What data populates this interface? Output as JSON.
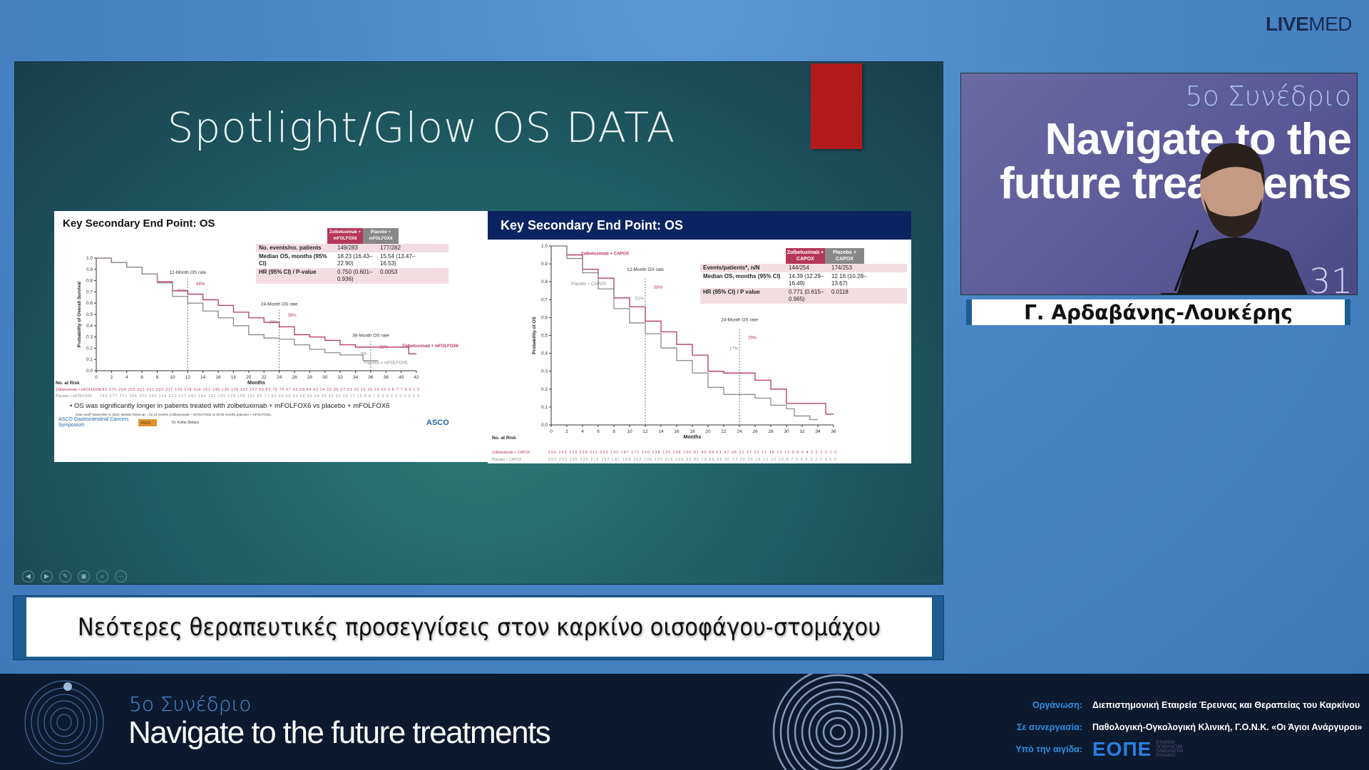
{
  "brand": {
    "live": "LIVE",
    "med": "MED"
  },
  "slide": {
    "title": "Spotlight/Glow OS DATA",
    "controls": [
      "previous",
      "next",
      "pen",
      "slides",
      "zoom",
      "more"
    ]
  },
  "subtitle": "Νεότερες θεραπευτικές προσεγγίσεις στον καρκίνο οισοφάγου-στομάχου",
  "video": {
    "line1": "5ο Συνέδριο",
    "line2": "Navigate to the",
    "line3": "future treatments",
    "corner": "31"
  },
  "speaker_name": "Γ. Αρδαβάνης-Λουκέρης",
  "footer": {
    "congress": "5ο Συνέδριο",
    "tagline": "Navigate to the future treatments",
    "rows": [
      {
        "key": "Οργάνωση:",
        "value": "Διεπιστημονική Εταιρεία Έρευνας και Θεραπείας του Καρκίνου"
      },
      {
        "key": "Σε συνεργασία:",
        "value": "Παθολογική-Ογκολογική Κλινική, Γ.Ο.Ν.Κ. «Οι Άγιοι Ανάργυροι»"
      },
      {
        "key": "Υπό την αιγίδα:",
        "value": "ΕΟΠΕ",
        "sub": "ΕΤΑΙΡΕΙΑ ΟΓΚΟΛΟΓΩΝ ΠΑΘΟΛΟΓΩΝ ΕΛΛΑΔΑΣ"
      }
    ]
  },
  "colors": {
    "zolbe": "#b5375a",
    "placebo": "#8a8a8a",
    "navy": "#0b2461"
  },
  "chart_data": [
    {
      "type": "line",
      "title": "Key Secondary End Point: OS",
      "xlabel": "Months",
      "ylabel": "Probability of Overall Survival",
      "xlim": [
        0,
        42
      ],
      "ylim": [
        0,
        1
      ],
      "xticks_step": 2,
      "yticks_step": 0.1,
      "series": [
        {
          "name": "Zolbetuximab + mFOLFOX6",
          "x": [
            0,
            2,
            4,
            6,
            8,
            10,
            12,
            14,
            16,
            18,
            20,
            22,
            24,
            26,
            28,
            30,
            32,
            34,
            36,
            38,
            40,
            41,
            42
          ],
          "y": [
            1,
            0.96,
            0.92,
            0.86,
            0.79,
            0.71,
            0.68,
            0.63,
            0.58,
            0.52,
            0.47,
            0.43,
            0.39,
            0.32,
            0.3,
            0.27,
            0.23,
            0.21,
            0.21,
            0.21,
            0.21,
            0.15,
            0.15
          ]
        },
        {
          "name": "Placebo + mFOLFOX6",
          "x": [
            0,
            2,
            4,
            6,
            8,
            10,
            12,
            14,
            16,
            18,
            20,
            22,
            24,
            26,
            28,
            30,
            32,
            34,
            35,
            37
          ],
          "y": [
            1,
            0.96,
            0.92,
            0.86,
            0.78,
            0.66,
            0.6,
            0.53,
            0.47,
            0.4,
            0.32,
            0.29,
            0.28,
            0.23,
            0.19,
            0.16,
            0.14,
            0.14,
            0.09,
            0.09
          ]
        }
      ],
      "annotations": [
        {
          "label": "12-Month OS rate",
          "x": 12,
          "values": [
            "68%",
            "60%"
          ]
        },
        {
          "label": "24-Month OS rate",
          "x": 24,
          "values": [
            "39%",
            "28%"
          ]
        },
        {
          "label": "36-Month OS rate",
          "x": 36,
          "values": [
            "21%",
            "9%"
          ]
        }
      ],
      "table": {
        "headers": [
          "Zolbetuximab + mFOLFOX6",
          "Placebo + mFOLFOX6"
        ],
        "rows": [
          [
            "No. events/no. patients",
            "149/283",
            "177/282"
          ],
          [
            "Median OS, months (95% CI)",
            "18.23 (16.43–22.90)",
            "15.54 (13.47–16.53)"
          ],
          [
            "HR (95% CI) / P-value",
            "0.750 (0.601–0.936)",
            "0.0053"
          ]
        ]
      },
      "at_risk_title": "No. at Risk",
      "at_risk": [
        {
          "name": "Zolbetuximab + mFOLFOX6",
          "values": "283 270 264 255 251 241 233 217 196 178 164 152 146 135 125 117 107 93 83 75 70 67 62 58 49 42 34 32 30 27 23 20 15 15 13 13 9 8 7 7 6 4 1 0"
        },
        {
          "name": "Placebo + mFOLFOX6",
          "values": "282 277 271 266 253 242 224 210 197 183 164 152 139 129 108 101 85 77 64 60 49 42 40 36 34 30 26 21 18 17 15 9 8 7 6 5 2 0 0 0 0 0 0 0"
        }
      ],
      "bullet": "OS was significantly longer in patients treated with zolbetuximab + mFOLFOX6 vs placebo + mFOLFOX6",
      "footnote": "Data cutoff September 9, 2022; Median follow-up = 22.14 months (zolbetuximab + mFOLFOX6) vs 20.93 months (placebo + mFOLFOX6).",
      "logo_left": "ASCO Gastrointestinal Cancers Symposium",
      "tag": "#GI23",
      "presenter": "Dr. Kohei Shitara",
      "logo_right": "ASCO"
    },
    {
      "type": "line",
      "title": "Key Secondary End Point: OS",
      "xlabel": "Months",
      "ylabel": "Probability of OS",
      "xlim": [
        0,
        36
      ],
      "ylim": [
        0,
        1
      ],
      "xticks_step": 2,
      "yticks_step": 0.1,
      "series": [
        {
          "name": "Zolbetuximab + CAPOX",
          "x": [
            0,
            2,
            4,
            6,
            8,
            10,
            12,
            14,
            16,
            18,
            20,
            22,
            24,
            26,
            28,
            30,
            32,
            34,
            35,
            36
          ],
          "y": [
            1,
            0.95,
            0.87,
            0.82,
            0.71,
            0.66,
            0.58,
            0.52,
            0.45,
            0.39,
            0.3,
            0.29,
            0.29,
            0.25,
            0.2,
            0.12,
            0.12,
            0.12,
            0.06,
            0.06
          ]
        },
        {
          "name": "Placebo + CAPOX",
          "x": [
            0,
            2,
            4,
            6,
            8,
            10,
            12,
            14,
            16,
            18,
            20,
            22,
            24,
            26,
            28,
            30,
            31,
            33,
            34
          ],
          "y": [
            1,
            0.93,
            0.85,
            0.76,
            0.65,
            0.57,
            0.51,
            0.43,
            0.36,
            0.29,
            0.21,
            0.17,
            0.17,
            0.15,
            0.11,
            0.09,
            0.05,
            0.03,
            0.03
          ]
        }
      ],
      "annotations": [
        {
          "label": "12-Month OS rate",
          "x": 12,
          "values": [
            "58%",
            "51%"
          ]
        },
        {
          "label": "24-Month OS rate",
          "x": 24,
          "values": [
            "29%",
            "17%"
          ]
        }
      ],
      "table": {
        "headers": [
          "Zolbetuximab + CAPOX",
          "Placebo + CAPOX"
        ],
        "rows": [
          [
            "Events/patients*, n/N",
            "144/254",
            "174/253"
          ],
          [
            "Median OS, months (95% CI)",
            "14.39 (12.29–16.49)",
            "12.16 (10.28–13.67)"
          ],
          [
            "HR (95% CI) / P value",
            "0.771 (0.615–0.965)",
            "0.0118"
          ]
        ]
      },
      "at_risk_title": "No. at Risk",
      "at_risk": [
        {
          "name": "Zolbetuximab + CAPOX",
          "values": "254 243 233 226 211 203 193 187 171 150 138 125 108 100 87 80 68 61 47 38 31 27 22 21 18 13 12 9 8 6 4 2 2 2 2 1 0"
        },
        {
          "name": "Placebo + CAPOX",
          "values": "253 243 235 220 210 197 181 168 152 136 125 115 104 92 82 70 59 49 40 27 22 20 16 12 10 10 8 7 6 5 4 3 2 2 0 0 0"
        }
      ]
    }
  ]
}
